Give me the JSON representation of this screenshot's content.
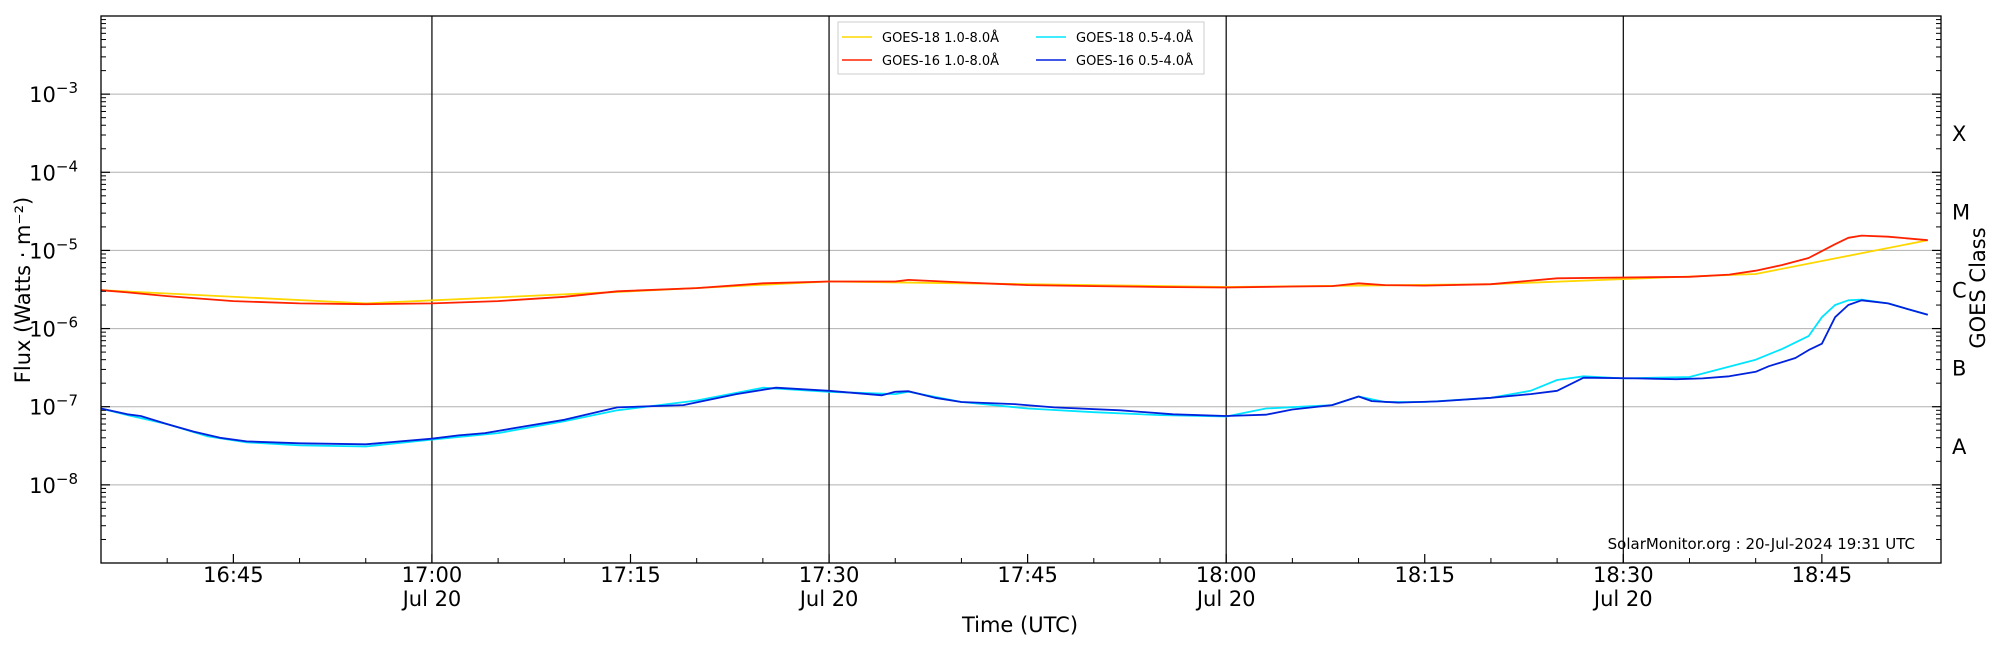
{
  "chart_data": {
    "type": "line",
    "title": "",
    "xlabel": "Time (UTC)",
    "ylabel": "Flux (Watts · m⁻²)",
    "y2label": "GOES Class",
    "yscale": "log",
    "ylim": [
      1e-09,
      0.01
    ],
    "xlim": [
      "16:35",
      "18:54"
    ],
    "x_ticks": [
      {
        "time": "16:45",
        "label": "16:45",
        "date": ""
      },
      {
        "time": "17:00",
        "label": "17:00",
        "date": "Jul 20"
      },
      {
        "time": "17:15",
        "label": "17:15",
        "date": ""
      },
      {
        "time": "17:30",
        "label": "17:30",
        "date": "Jul 20"
      },
      {
        "time": "17:45",
        "label": "17:45",
        "date": ""
      },
      {
        "time": "18:00",
        "label": "18:00",
        "date": "Jul 20"
      },
      {
        "time": "18:15",
        "label": "18:15",
        "date": ""
      },
      {
        "time": "18:30",
        "label": "18:30",
        "date": "Jul 20"
      },
      {
        "time": "18:45",
        "label": "18:45",
        "date": ""
      }
    ],
    "y_ticks": [
      {
        "value": 1e-08,
        "base": "10",
        "exp": "−8"
      },
      {
        "value": 1e-07,
        "base": "10",
        "exp": "−7"
      },
      {
        "value": 1e-06,
        "base": "10",
        "exp": "−6"
      },
      {
        "value": 1e-05,
        "base": "10",
        "exp": "−5"
      },
      {
        "value": 0.0001,
        "base": "10",
        "exp": "−4"
      },
      {
        "value": 0.001,
        "base": "10",
        "exp": "−3"
      }
    ],
    "hour_lines": [
      "17:00",
      "17:30",
      "18:00",
      "18:30"
    ],
    "goes_classes": [
      {
        "label": "A",
        "value": 3.16e-08
      },
      {
        "label": "B",
        "value": 3.16e-07
      },
      {
        "label": "C",
        "value": 3.16e-06
      },
      {
        "label": "M",
        "value": 3.16e-05
      },
      {
        "label": "X",
        "value": 0.000316
      }
    ],
    "grid": true,
    "legend_position": "top-center",
    "credit": "SolarMonitor.org : 20-Jul-2024 19:31 UTC",
    "series": [
      {
        "name": "GOES-18 1.0-8.0Å",
        "color": "#ffd700",
        "x": [
          "16:35",
          "16:55",
          "17:15",
          "17:30",
          "17:50",
          "18:00",
          "18:20",
          "18:40",
          "18:53"
        ],
        "values": [
          3.1e-06,
          2.1e-06,
          3e-06,
          4e-06,
          3.6e-06,
          3.4e-06,
          3.7e-06,
          5e-06,
          1.35e-05
        ]
      },
      {
        "name": "GOES-16 1.0-8.0Å",
        "color": "#ff2200",
        "x": [
          "16:35",
          "16:37",
          "16:40",
          "16:45",
          "16:50",
          "16:55",
          "17:00",
          "17:05",
          "17:10",
          "17:14",
          "17:20",
          "17:25",
          "17:30",
          "17:35",
          "17:36",
          "17:40",
          "17:45",
          "17:50",
          "17:55",
          "18:00",
          "18:05",
          "18:08",
          "18:10",
          "18:12",
          "18:15",
          "18:20",
          "18:25",
          "18:30",
          "18:35",
          "18:38",
          "18:40",
          "18:42",
          "18:44",
          "18:46",
          "18:47",
          "18:48",
          "18:50",
          "18:53"
        ],
        "values": [
          3.1e-06,
          2.9e-06,
          2.6e-06,
          2.25e-06,
          2.1e-06,
          2.05e-06,
          2.1e-06,
          2.25e-06,
          2.55e-06,
          3e-06,
          3.3e-06,
          3.8e-06,
          4e-06,
          4e-06,
          4.2e-06,
          3.9e-06,
          3.6e-06,
          3.5e-06,
          3.4e-06,
          3.35e-06,
          3.45e-06,
          3.5e-06,
          3.8e-06,
          3.6e-06,
          3.55e-06,
          3.7e-06,
          4.4e-06,
          4.5e-06,
          4.6e-06,
          4.9e-06,
          5.5e-06,
          6.5e-06,
          8e-06,
          1.2e-05,
          1.45e-05,
          1.55e-05,
          1.5e-05,
          1.35e-05
        ]
      },
      {
        "name": "GOES-18 0.5-4.0Å",
        "color": "#00e5ff",
        "x": [
          "16:35",
          "16:37",
          "16:40",
          "16:43",
          "16:46",
          "16:50",
          "16:55",
          "17:00",
          "17:05",
          "17:10",
          "17:14",
          "17:20",
          "17:25",
          "17:30",
          "17:35",
          "17:36",
          "17:40",
          "17:45",
          "17:50",
          "17:55",
          "18:00",
          "18:03",
          "18:08",
          "18:10",
          "18:12",
          "18:15",
          "18:20",
          "18:23",
          "18:25",
          "18:27",
          "18:30",
          "18:35",
          "18:40",
          "18:42",
          "18:44",
          "18:45",
          "18:46",
          "18:47",
          "18:48",
          "18:50",
          "18:53"
        ],
        "values": [
          9.5e-08,
          7.8e-08,
          6e-08,
          4.2e-08,
          3.5e-08,
          3.2e-08,
          3.1e-08,
          3.8e-08,
          4.6e-08,
          6.5e-08,
          9e-08,
          1.2e-07,
          1.75e-07,
          1.55e-07,
          1.45e-07,
          1.55e-07,
          1.15e-07,
          9.5e-08,
          8.5e-08,
          7.8e-08,
          7.5e-08,
          9.5e-08,
          1.05e-07,
          1.35e-07,
          1.15e-07,
          1.15e-07,
          1.3e-07,
          1.6e-07,
          2.2e-07,
          2.45e-07,
          2.3e-07,
          2.4e-07,
          4e-07,
          5.5e-07,
          8e-07,
          1.4e-06,
          2e-06,
          2.3e-06,
          2.35e-06,
          2.1e-06,
          1.5e-06
        ]
      },
      {
        "name": "GOES-16 0.5-4.0Å",
        "color": "#0022dd",
        "x": [
          "16:35",
          "16:37",
          "16:38",
          "16:40",
          "16:42",
          "16:44",
          "16:46",
          "16:50",
          "16:55",
          "17:00",
          "17:02",
          "17:04",
          "17:07",
          "17:10",
          "17:14",
          "17:19",
          "17:23",
          "17:26",
          "17:30",
          "17:34",
          "17:35",
          "17:36",
          "17:38",
          "17:40",
          "17:44",
          "17:47",
          "17:52",
          "17:56",
          "18:00",
          "18:03",
          "18:05",
          "18:08",
          "18:10",
          "18:11",
          "18:13",
          "18:16",
          "18:20",
          "18:23",
          "18:25",
          "18:27",
          "18:31",
          "18:34",
          "18:36",
          "18:38",
          "18:40",
          "18:41",
          "18:43",
          "18:44",
          "18:45",
          "18:46",
          "18:47",
          "18:48",
          "18:50",
          "18:53"
        ],
        "values": [
          9.5e-08,
          8e-08,
          7.6e-08,
          6e-08,
          4.8e-08,
          4e-08,
          3.6e-08,
          3.4e-08,
          3.3e-08,
          3.9e-08,
          4.3e-08,
          4.6e-08,
          5.6e-08,
          6.8e-08,
          9.8e-08,
          1.05e-07,
          1.45e-07,
          1.75e-07,
          1.6e-07,
          1.4e-07,
          1.55e-07,
          1.58e-07,
          1.3e-07,
          1.15e-07,
          1.08e-07,
          9.8e-08,
          9e-08,
          8e-08,
          7.6e-08,
          7.9e-08,
          9.2e-08,
          1.05e-07,
          1.35e-07,
          1.18e-07,
          1.13e-07,
          1.17e-07,
          1.3e-07,
          1.45e-07,
          1.6e-07,
          2.35e-07,
          2.3e-07,
          2.25e-07,
          2.3e-07,
          2.45e-07,
          2.8e-07,
          3.3e-07,
          4.2e-07,
          5.3e-07,
          6.4e-07,
          1.4e-06,
          2e-06,
          2.3e-06,
          2.1e-06,
          1.5e-06
        ]
      }
    ]
  }
}
